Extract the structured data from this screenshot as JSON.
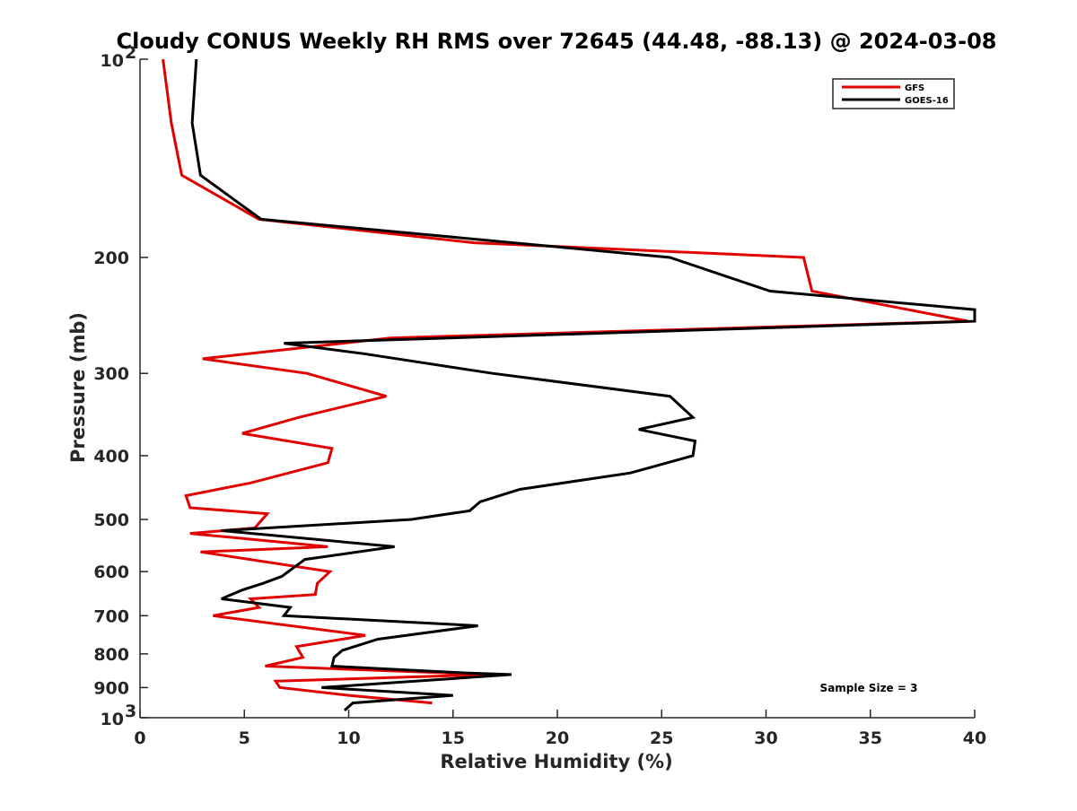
{
  "chart_data": {
    "type": "line",
    "title": "Cloudy CONUS Weekly RH RMS over 72645 (44.48, -88.13) @ 2024-03-08",
    "xlabel": "Relative Humidity (%)",
    "ylabel": "Pressure (mb)",
    "xlim": [
      0,
      40
    ],
    "ylim": [
      100,
      1000
    ],
    "y_scale": "log",
    "y_reversed": true,
    "grid": false,
    "legend_position": "top-right",
    "x_ticks": [
      0,
      5,
      10,
      15,
      20,
      25,
      30,
      35,
      40
    ],
    "y_ticks": [
      {
        "value": 100,
        "label": "10",
        "sup": "2"
      },
      {
        "value": 200,
        "label": "200"
      },
      {
        "value": 300,
        "label": "300"
      },
      {
        "value": 400,
        "label": "400"
      },
      {
        "value": 500,
        "label": "500"
      },
      {
        "value": 600,
        "label": "600"
      },
      {
        "value": 700,
        "label": "700"
      },
      {
        "value": 800,
        "label": "800"
      },
      {
        "value": 900,
        "label": "900"
      },
      {
        "value": 1000,
        "label": "10",
        "sup": "3"
      }
    ],
    "annotation": "Sample Size = 3",
    "series": [
      {
        "name": "GFS",
        "color": "#e00000",
        "points": [
          [
            1.1,
            100
          ],
          [
            1.5,
            125
          ],
          [
            2.0,
            150
          ],
          [
            5.7,
            175
          ],
          [
            16.0,
            190
          ],
          [
            31.8,
            200
          ],
          [
            32.2,
            225
          ],
          [
            39.7,
            250
          ],
          [
            12.0,
            265
          ],
          [
            3.0,
            285
          ],
          [
            8.0,
            300
          ],
          [
            11.8,
            325
          ],
          [
            7.6,
            350
          ],
          [
            4.9,
            370
          ],
          [
            9.2,
            390
          ],
          [
            9.0,
            410
          ],
          [
            5.3,
            440
          ],
          [
            2.2,
            460
          ],
          [
            2.4,
            480
          ],
          [
            6.1,
            490
          ],
          [
            5.5,
            515
          ],
          [
            2.4,
            525
          ],
          [
            9.0,
            550
          ],
          [
            2.9,
            560
          ],
          [
            9.1,
            600
          ],
          [
            8.5,
            625
          ],
          [
            8.4,
            650
          ],
          [
            5.3,
            660
          ],
          [
            5.7,
            680
          ],
          [
            3.5,
            700
          ],
          [
            10.8,
            750
          ],
          [
            7.5,
            780
          ],
          [
            7.8,
            810
          ],
          [
            6.0,
            835
          ],
          [
            16.8,
            860
          ],
          [
            6.5,
            880
          ],
          [
            6.7,
            900
          ],
          [
            10.0,
            925
          ],
          [
            14.0,
            950
          ]
        ]
      },
      {
        "name": "GOES-16",
        "color": "#000000",
        "points": [
          [
            2.7,
            100
          ],
          [
            2.5,
            125
          ],
          [
            2.9,
            150
          ],
          [
            5.8,
            175
          ],
          [
            14.0,
            185
          ],
          [
            25.4,
            200
          ],
          [
            30.2,
            225
          ],
          [
            40.0,
            240
          ],
          [
            40.0,
            250
          ],
          [
            6.9,
            270
          ],
          [
            10.7,
            280
          ],
          [
            16.9,
            300
          ],
          [
            25.4,
            325
          ],
          [
            26.5,
            350
          ],
          [
            23.9,
            365
          ],
          [
            26.6,
            380
          ],
          [
            26.5,
            400
          ],
          [
            23.5,
            425
          ],
          [
            18.2,
            450
          ],
          [
            16.3,
            470
          ],
          [
            15.8,
            485
          ],
          [
            13.0,
            500
          ],
          [
            3.9,
            520
          ],
          [
            12.2,
            550
          ],
          [
            7.9,
            575
          ],
          [
            6.8,
            610
          ],
          [
            5.9,
            625
          ],
          [
            4.9,
            640
          ],
          [
            3.9,
            660
          ],
          [
            7.2,
            680
          ],
          [
            6.9,
            700
          ],
          [
            16.2,
            725
          ],
          [
            11.4,
            760
          ],
          [
            9.7,
            790
          ],
          [
            9.3,
            810
          ],
          [
            9.2,
            835
          ],
          [
            15.6,
            855
          ],
          [
            17.8,
            860
          ],
          [
            8.7,
            900
          ],
          [
            15.0,
            925
          ],
          [
            10.2,
            950
          ],
          [
            9.8,
            975
          ]
        ]
      }
    ]
  }
}
